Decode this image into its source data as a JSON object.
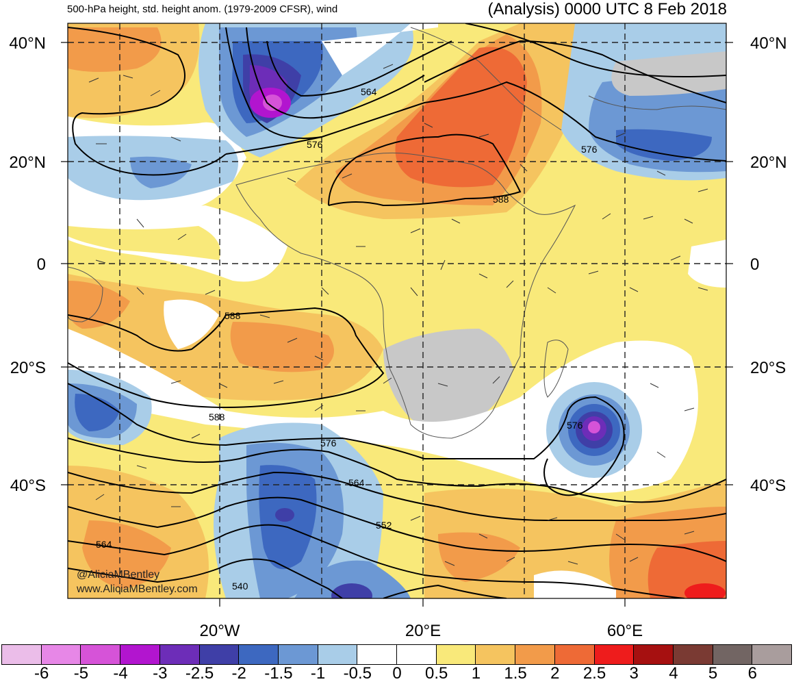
{
  "titles": {
    "left": "500-hPa height, std. height anom. (1979-2009 CFSR), wind",
    "right": "(Analysis) 0000 UTC 8 Feb 2018"
  },
  "axes": {
    "lat_left": [
      "40°N",
      "20°N",
      "0",
      "20°S",
      "40°S"
    ],
    "lat_right": [
      "40°N",
      "20°N",
      "0",
      "20°S",
      "40°S"
    ],
    "lon_bottom": [
      "20°W",
      "20°E",
      "60°E"
    ]
  },
  "contour_labels": [
    "564",
    "576",
    "588",
    "576",
    "588",
    "588",
    "576",
    "576",
    "564",
    "552",
    "564",
    "540"
  ],
  "credits": {
    "handle": "@AliciaMBentley",
    "url": "www.AliciaMBentley.com"
  },
  "colorbar": {
    "colors": [
      "#ebbde9",
      "#e787e7",
      "#d653d8",
      "#b215cf",
      "#6d2db8",
      "#3f3fa7",
      "#3d68c0",
      "#6c98d4",
      "#a9cde8",
      "#ffffff",
      "#ffffff",
      "#f9e97a",
      "#f5c45f",
      "#f29b4a",
      "#ee6a36",
      "#ee1c1c",
      "#a61010",
      "#7a3a33",
      "#726563",
      "#a99d9d"
    ],
    "labels": [
      "-6",
      "-5",
      "-4",
      "-3",
      "-2.5",
      "-2",
      "-1.5",
      "-1",
      "-0.5",
      "0",
      "0.5",
      "1",
      "1.5",
      "2",
      "2.5",
      "3",
      "4",
      "5",
      "6"
    ]
  },
  "colors": {
    "ocean_white": "#ffffff",
    "positive_light": "#f9e97a",
    "positive_mid": "#f5c45f",
    "positive_high": "#f29b4a",
    "positive_max": "#ee6a36",
    "negative_light": "#a9cde8",
    "negative_mid": "#6c98d4",
    "negative_high": "#3d68c0",
    "negative_deep": "#3f3fa7",
    "negative_max": "#b215cf",
    "land_gray": "#c8c8c8"
  }
}
